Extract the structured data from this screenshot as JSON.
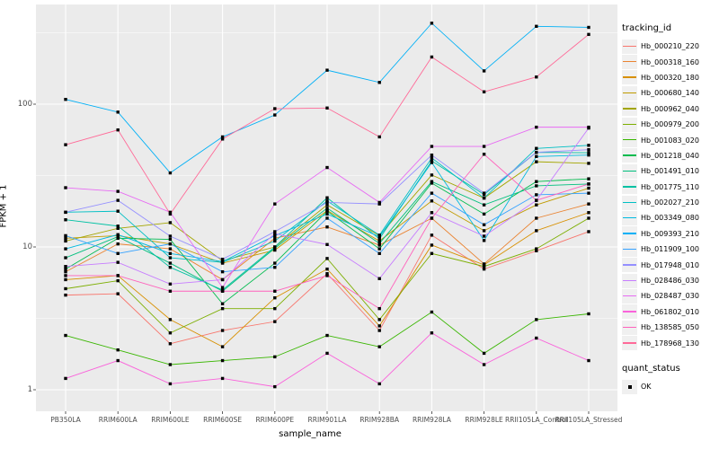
{
  "chart_data": {
    "type": "line",
    "xlabel": "sample_name",
    "ylabel": "FPKM + 1",
    "y_scale": "log10",
    "y_ticks": [
      1,
      10,
      100
    ],
    "ylim_log": [
      0.85,
      2.7
    ],
    "grid": "on",
    "panel_bg": "#EBEBEB",
    "grid_color": "#FFFFFF",
    "point_color": "#000000",
    "point_shape": "square",
    "legend_position": "right",
    "categories": [
      "PB350LA",
      "RRIM600LA",
      "RRIM600LE",
      "RRIM600SE",
      "RRIM600PE",
      "RRIM901LA",
      "RRIM928BA",
      "RRIM928LA",
      "RRIM928LE",
      "RRII105LA_Control",
      "RRII105LA_Stressed"
    ],
    "legend": {
      "tracking_title": "tracking_id",
      "quant_title": "quant_status",
      "quant_ok_label": "OK"
    },
    "series": [
      {
        "name": "Hb_000210_220",
        "color": "#F8766D",
        "values": [
          4.6,
          4.7,
          2.1,
          2.6,
          3.0,
          6.5,
          2.6,
          12.1,
          7.0,
          9.4,
          12.8
        ]
      },
      {
        "name": "Hb_000318_160",
        "color": "#EA8331",
        "values": [
          6.7,
          10.5,
          9.7,
          5.9,
          11.5,
          13.8,
          10.3,
          15.9,
          7.6,
          15.9,
          20.0
        ]
      },
      {
        "name": "Hb_000320_180",
        "color": "#D89000",
        "values": [
          5.9,
          6.3,
          3.1,
          2.0,
          4.4,
          7.0,
          2.8,
          10.3,
          7.5,
          13.0,
          17.4
        ]
      },
      {
        "name": "Hb_000680_140",
        "color": "#C09B00",
        "values": [
          11.5,
          12.0,
          10.5,
          7.7,
          9.5,
          18.0,
          11.0,
          21.0,
          13.0,
          19.7,
          25.8
        ]
      },
      {
        "name": "Hb_000962_040",
        "color": "#A3A500",
        "values": [
          11.0,
          13.5,
          14.8,
          8.0,
          10.0,
          19.7,
          12.0,
          31.9,
          22.0,
          39.5,
          38.5
        ]
      },
      {
        "name": "Hb_000979_200",
        "color": "#7CAE00",
        "values": [
          5.1,
          5.8,
          2.5,
          3.7,
          3.7,
          8.3,
          3.1,
          9.0,
          7.3,
          9.7,
          15.9
        ]
      },
      {
        "name": "Hb_001083_020",
        "color": "#39B600",
        "values": [
          2.4,
          1.9,
          1.5,
          1.6,
          1.7,
          2.4,
          2.0,
          3.5,
          1.8,
          3.1,
          3.4
        ]
      },
      {
        "name": "Hb_001218_040",
        "color": "#00BB4E",
        "values": [
          7.0,
          11.5,
          11.3,
          4.0,
          7.7,
          17.8,
          9.7,
          28.0,
          17.0,
          28.7,
          30.0
        ]
      },
      {
        "name": "Hb_001491_010",
        "color": "#00BF7D",
        "values": [
          8.4,
          11.8,
          7.7,
          4.9,
          9.8,
          18.7,
          10.6,
          28.7,
          19.7,
          26.8,
          27.6
        ]
      },
      {
        "name": "Hb_001775_110",
        "color": "#00C1A3",
        "values": [
          15.5,
          14.0,
          7.2,
          5.0,
          10.0,
          22.1,
          11.4,
          40.0,
          23.3,
          46.0,
          45.7
        ]
      },
      {
        "name": "Hb_002027_210",
        "color": "#00BFC4",
        "values": [
          17.5,
          17.8,
          8.4,
          7.8,
          11.0,
          21.0,
          12.1,
          42.0,
          22.0,
          49.0,
          51.5
        ]
      },
      {
        "name": "Hb_003349_080",
        "color": "#00BAE0",
        "values": [
          9.7,
          12.2,
          9.0,
          7.9,
          12.0,
          17.0,
          11.8,
          39.0,
          11.1,
          43.0,
          44.0
        ]
      },
      {
        "name": "Hb_009393_210",
        "color": "#00B0F6",
        "values": [
          108,
          88,
          33,
          59,
          84,
          173,
          142,
          369,
          171,
          351,
          345
        ]
      },
      {
        "name": "Hb_011909_100",
        "color": "#35A2FF",
        "values": [
          12.0,
          9.0,
          10.5,
          6.7,
          7.2,
          15.9,
          9.0,
          23.8,
          14.3,
          23.2,
          23.8
        ]
      },
      {
        "name": "Hb_017948_010",
        "color": "#9590FF",
        "values": [
          17.5,
          21.2,
          11.9,
          8.2,
          12.8,
          20.5,
          20.0,
          44.0,
          23.8,
          46.0,
          48.0
        ]
      },
      {
        "name": "Hb_028486_030",
        "color": "#C77CFF",
        "values": [
          7.3,
          7.8,
          5.5,
          5.9,
          12.4,
          10.4,
          6.0,
          17.4,
          11.9,
          21.2,
          68.0
        ]
      },
      {
        "name": "Hb_028487_030",
        "color": "#E76BF3",
        "values": [
          26.0,
          24.5,
          17.5,
          5.2,
          20.0,
          36.0,
          20.5,
          50.6,
          50.6,
          69.0,
          69.0
        ]
      },
      {
        "name": "Hb_061802_010",
        "color": "#FA62DB",
        "values": [
          1.2,
          1.6,
          1.1,
          1.2,
          1.05,
          1.8,
          1.1,
          2.5,
          1.5,
          2.3,
          1.6
        ]
      },
      {
        "name": "Hb_138585_050",
        "color": "#FF62BC",
        "values": [
          6.3,
          6.3,
          4.9,
          4.9,
          4.9,
          6.3,
          3.7,
          15.9,
          44.6,
          21.2,
          27.6
        ]
      },
      {
        "name": "Hb_178968_130",
        "color": "#FF6A98",
        "values": [
          52,
          66,
          17,
          57,
          93,
          94,
          59,
          214,
          122,
          155,
          308
        ]
      }
    ]
  }
}
